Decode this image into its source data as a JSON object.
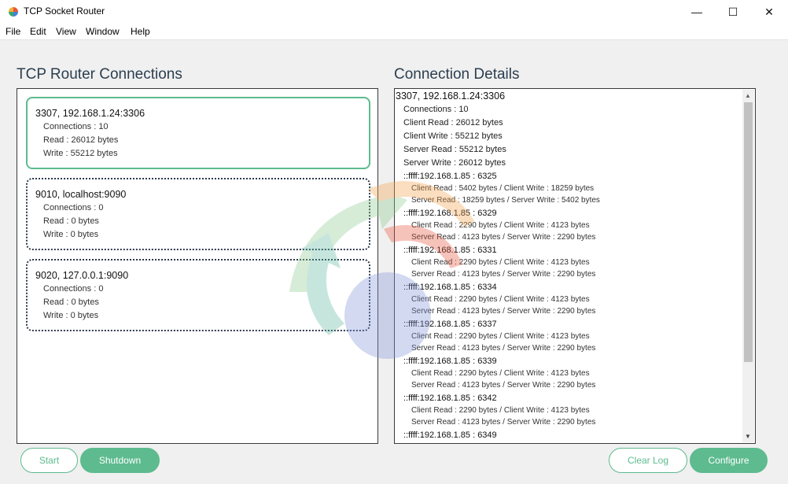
{
  "window": {
    "title": "TCP Socket Router",
    "minimize_glyph": "—",
    "maximize_glyph": "☐",
    "close_glyph": "✕"
  },
  "menu": [
    "File",
    "Edit",
    "View",
    "Window",
    "Help"
  ],
  "left": {
    "title": "TCP Router Connections",
    "cards": [
      {
        "title": "3307, 192.168.1.24:3306",
        "connections": "Connections : 10",
        "read": "Read : 26012 bytes",
        "write": "Write : 55212 bytes",
        "active": true
      },
      {
        "title": "9010, localhost:9090",
        "connections": "Connections : 0",
        "read": "Read : 0 bytes",
        "write": "Write : 0 bytes",
        "active": false
      },
      {
        "title": "9020, 127.0.0.1:9090",
        "connections": "Connections : 0",
        "read": "Read : 0 bytes",
        "write": "Write : 0 bytes",
        "active": false
      }
    ]
  },
  "right": {
    "title": "Connection Details",
    "header": "3307, 192.168.1.24:3306",
    "stats": [
      "Connections : 10",
      "Client Read : 26012 bytes",
      "Client Write : 55212 bytes",
      "Server Read : 55212 bytes",
      "Server Write : 26012 bytes"
    ],
    "clients": [
      {
        "addr": "::ffff:192.168.1.85 : 6325",
        "client": "Client Read : 5402 bytes / Client Write : 18259 bytes",
        "server": "Server Read : 18259 bytes / Server Write : 5402 bytes"
      },
      {
        "addr": "::ffff:192.168.1.85 : 6329",
        "client": "Client Read : 2290 bytes / Client Write : 4123 bytes",
        "server": "Server Read : 4123 bytes / Server Write : 2290 bytes"
      },
      {
        "addr": "::ffff:192.168.1.85 : 6331",
        "client": "Client Read : 2290 bytes / Client Write : 4123 bytes",
        "server": "Server Read : 4123 bytes / Server Write : 2290 bytes"
      },
      {
        "addr": "::ffff:192.168.1.85 : 6334",
        "client": "Client Read : 2290 bytes / Client Write : 4123 bytes",
        "server": "Server Read : 4123 bytes / Server Write : 2290 bytes"
      },
      {
        "addr": "::ffff:192.168.1.85 : 6337",
        "client": "Client Read : 2290 bytes / Client Write : 4123 bytes",
        "server": "Server Read : 4123 bytes / Server Write : 2290 bytes"
      },
      {
        "addr": "::ffff:192.168.1.85 : 6339",
        "client": "Client Read : 2290 bytes / Client Write : 4123 bytes",
        "server": "Server Read : 4123 bytes / Server Write : 2290 bytes"
      },
      {
        "addr": "::ffff:192.168.1.85 : 6342",
        "client": "Client Read : 2290 bytes / Client Write : 4123 bytes",
        "server": "Server Read : 4123 bytes / Server Write : 2290 bytes"
      },
      {
        "addr": "::ffff:192.168.1.85 : 6349",
        "client": "",
        "server": ""
      }
    ]
  },
  "buttons": {
    "start": "Start",
    "shutdown": "Shutdown",
    "clear_log": "Clear Log",
    "configure": "Configure"
  },
  "colors": {
    "accent": "#5dbb8f",
    "heading": "#2b3e4f"
  },
  "icons": [
    "app-icon",
    "minimize-icon",
    "maximize-icon",
    "close-icon",
    "scroll-up-icon",
    "scroll-down-icon",
    "logo-watermark"
  ]
}
